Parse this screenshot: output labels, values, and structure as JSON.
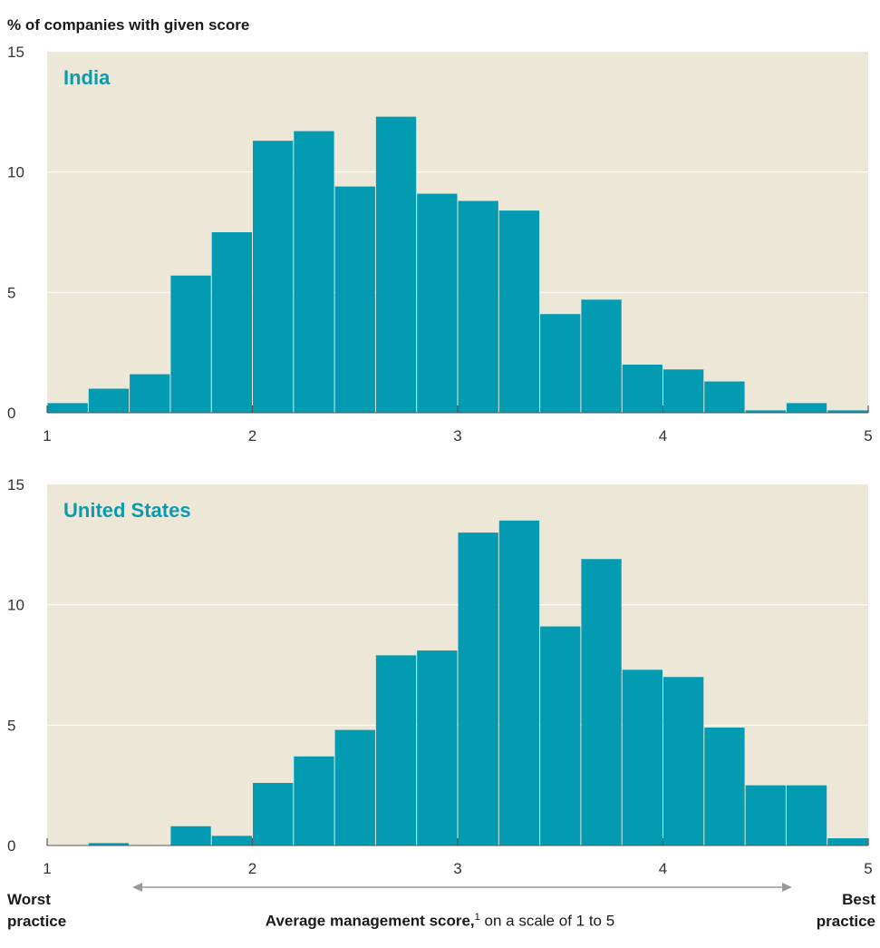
{
  "y_axis_title": "% of companies with given score",
  "footer": {
    "left_line1": "Worst",
    "left_line2": "practice",
    "right_line1": "Best",
    "right_line2": "practice",
    "center_bold": "Average management score,",
    "center_sup": "1",
    "center_rest": " on a scale of 1 to 5"
  },
  "colors": {
    "bar": "#039bb1",
    "plot_bg": "#ece7d6",
    "title": "#0a9bb0",
    "grid": "#ffffff",
    "arrow": "#999999"
  },
  "chart_data": [
    {
      "type": "bar",
      "title": "India",
      "bin_width": 0.2,
      "x": [
        1.0,
        1.2,
        1.4,
        1.6,
        1.8,
        2.0,
        2.2,
        2.4,
        2.6,
        2.8,
        3.0,
        3.2,
        3.4,
        3.6,
        3.8,
        4.0,
        4.2,
        4.4,
        4.6,
        4.8
      ],
      "values": [
        0.4,
        1.0,
        1.6,
        5.7,
        7.5,
        11.3,
        11.7,
        9.4,
        12.3,
        9.1,
        8.8,
        8.4,
        4.1,
        4.7,
        2.0,
        1.8,
        1.3,
        0.1,
        0.4,
        0.1
      ],
      "xlim": [
        1,
        5
      ],
      "ylim": [
        0,
        15
      ],
      "xticks": [
        1,
        2,
        3,
        4,
        5
      ],
      "yticks": [
        0,
        5,
        10,
        15
      ],
      "grid": true
    },
    {
      "type": "bar",
      "title": "United States",
      "bin_width": 0.2,
      "x": [
        1.0,
        1.2,
        1.4,
        1.6,
        1.8,
        2.0,
        2.2,
        2.4,
        2.6,
        2.8,
        3.0,
        3.2,
        3.4,
        3.6,
        3.8,
        4.0,
        4.2,
        4.4,
        4.6,
        4.8
      ],
      "values": [
        0.0,
        0.1,
        0.0,
        0.8,
        0.4,
        2.6,
        3.7,
        4.8,
        7.9,
        8.1,
        13.0,
        13.5,
        9.1,
        11.9,
        7.3,
        7.0,
        4.9,
        2.5,
        2.5,
        0.3
      ],
      "xlim": [
        1,
        5
      ],
      "ylim": [
        0,
        15
      ],
      "xticks": [
        1,
        2,
        3,
        4,
        5
      ],
      "yticks": [
        0,
        5,
        10,
        15
      ],
      "grid": true
    }
  ]
}
